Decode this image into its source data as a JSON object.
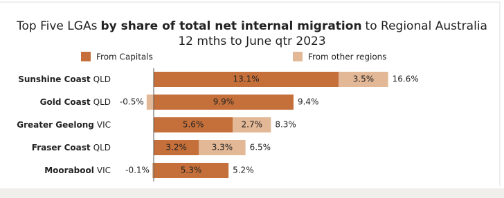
{
  "chart_data": {
    "type": "stacked-bar-horizontal",
    "title": [
      "Top Five LGAs",
      "by share of total net internal migration",
      "to Regional Australia"
    ],
    "subtitle": "12 mths to June qtr 2023",
    "categories": [
      "Sunshine Coast",
      "Gold Coast",
      "Greater Geelong",
      "Fraser Coast",
      "Moorabool"
    ],
    "states": [
      "QLD",
      "QLD",
      "VIC",
      "QLD",
      "VIC"
    ],
    "series": [
      {
        "name": "From Capitals",
        "color": "#c5703a",
        "values": [
          13.1,
          9.9,
          5.6,
          3.2,
          5.3
        ],
        "value_labels": [
          "13.1%",
          "9.9%",
          "5.6%",
          "3.2%",
          "5.3%"
        ]
      },
      {
        "name": "From other regions",
        "color": "#e3b896",
        "values": [
          3.5,
          -0.5,
          2.7,
          3.3,
          -0.1
        ],
        "value_labels": [
          "3.5%",
          "-0.5%",
          "2.7%",
          "3.3%",
          "-0.1%"
        ]
      }
    ],
    "totals": [
      16.6,
      9.4,
      8.3,
      6.5,
      5.2
    ],
    "total_labels": [
      "16.6%",
      "9.4%",
      "8.3%",
      "6.5%",
      "5.2%"
    ]
  }
}
